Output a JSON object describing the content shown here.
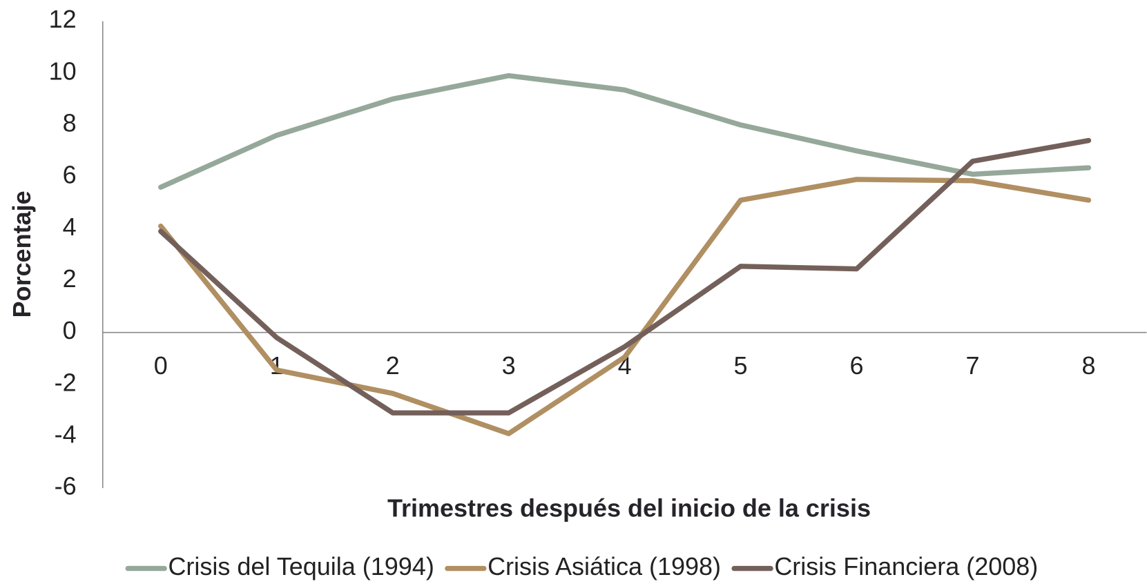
{
  "chart_data": {
    "type": "line",
    "x_label": "Trimestres después del inicio de la crisis",
    "y_label": "Porcentaje",
    "categories": [
      "0",
      "1",
      "2",
      "3",
      "4",
      "5",
      "6",
      "7",
      "8"
    ],
    "series": [
      {
        "name": "Crisis del Tequila (1994)",
        "color": "#95a89a",
        "values": [
          5.6,
          7.6,
          9.0,
          9.9,
          9.35,
          8.0,
          7.0,
          6.1,
          6.35
        ]
      },
      {
        "name": "Crisis Asiática (1998)",
        "color": "#b08f62",
        "values": [
          4.1,
          -1.45,
          -2.35,
          -3.9,
          -0.95,
          5.1,
          5.9,
          5.85,
          5.1
        ]
      },
      {
        "name": "Crisis Financiera (2008)",
        "color": "#74605a",
        "values": [
          3.9,
          -0.2,
          -3.1,
          -3.1,
          -0.55,
          2.55,
          2.45,
          6.6,
          7.4
        ]
      }
    ],
    "ylim": [
      -6,
      12
    ],
    "yticks": [
      -6,
      -4,
      -2,
      0,
      2,
      4,
      6,
      8,
      10,
      12
    ],
    "grid": false,
    "legend": "bottom"
  }
}
